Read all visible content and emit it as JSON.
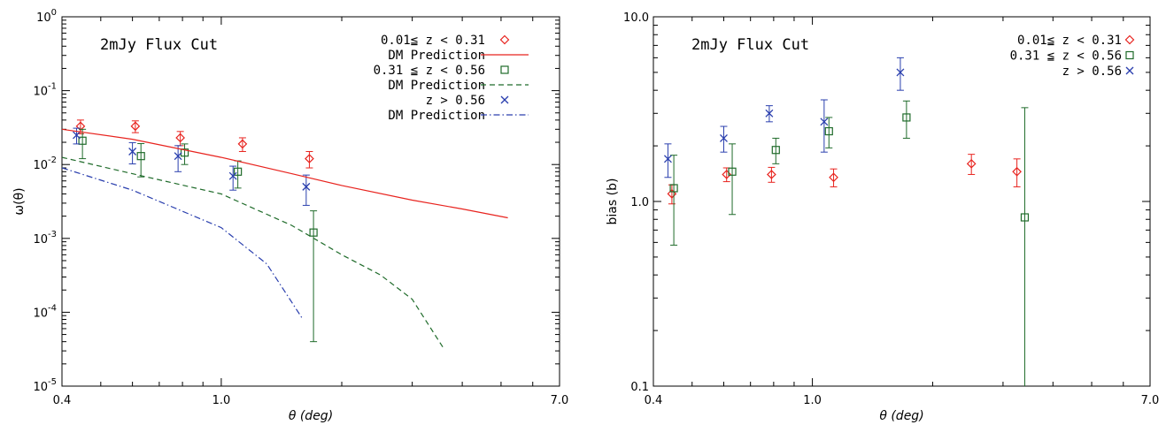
{
  "colors": {
    "red": "#e8231e",
    "green": "#1f6b2a",
    "blue": "#2a3fae"
  },
  "chart_data": [
    {
      "type": "scatter",
      "xscale": "log",
      "yscale": "log",
      "xlim": [
        0.4,
        7.0
      ],
      "ylim": [
        1e-05,
        1.0
      ],
      "title": "2mJy Flux Cut",
      "xlabel": "θ (deg)",
      "ylabel": "ω(θ)",
      "xticks": [
        "0.4",
        "1.0",
        "7.0"
      ],
      "yticks": [
        {
          "base": "10",
          "exp": "0"
        },
        {
          "base": "10",
          "exp": "-1"
        },
        {
          "base": "10",
          "exp": "-2"
        },
        {
          "base": "10",
          "exp": "-3"
        },
        {
          "base": "10",
          "exp": "-4"
        },
        {
          "base": "10",
          "exp": "-5"
        }
      ],
      "legend_position": "top-right",
      "legend": [
        {
          "label": "0.01≦ z < 0.31",
          "key": "s1"
        },
        {
          "label": "DM Prediction",
          "key": "m1"
        },
        {
          "label": "0.31 ≦ z < 0.56",
          "key": "s2"
        },
        {
          "label": "DM Prediction",
          "key": "m2"
        },
        {
          "label": "z > 0.56",
          "key": "s3"
        },
        {
          "label": "DM Prediction",
          "key": "m3"
        }
      ],
      "series": [
        {
          "key": "s1",
          "marker": "diamond",
          "color": "red",
          "x": [
            0.445,
            0.61,
            0.79,
            1.13,
            1.66
          ],
          "y": [
            0.033,
            0.033,
            0.023,
            0.019,
            0.012
          ],
          "err": [
            0.007,
            0.006,
            0.005,
            0.004,
            0.003
          ]
        },
        {
          "key": "s2",
          "marker": "square",
          "color": "green",
          "x": [
            0.45,
            0.63,
            0.81,
            1.1,
            1.7
          ],
          "y": [
            0.021,
            0.013,
            0.0145,
            0.008,
            0.0012
          ],
          "err": [
            0.009,
            0.0062,
            0.0045,
            0.0032,
            0.00116
          ]
        },
        {
          "key": "s3",
          "marker": "x",
          "color": "blue",
          "x": [
            0.435,
            0.6,
            0.78,
            1.07,
            1.63
          ],
          "y": [
            0.025,
            0.015,
            0.013,
            0.007,
            0.005
          ],
          "err": [
            0.006,
            0.0048,
            0.005,
            0.0025,
            0.0022
          ]
        },
        {
          "key": "m1",
          "line": "solid",
          "color": "red",
          "x": [
            0.4,
            0.6,
            1.0,
            1.5,
            2.0,
            3.0,
            4.0,
            5.2
          ],
          "y": [
            0.03,
            0.022,
            0.0125,
            0.0075,
            0.0052,
            0.0033,
            0.0025,
            0.0019
          ]
        },
        {
          "key": "m2",
          "line": "dashed",
          "color": "green",
          "x": [
            0.4,
            0.6,
            1.0,
            1.5,
            2.0,
            2.5,
            3.0,
            3.6
          ],
          "y": [
            0.0125,
            0.0075,
            0.004,
            0.0015,
            0.0006,
            0.00032,
            0.00015,
            3.2e-05
          ]
        },
        {
          "key": "m3",
          "line": "dashdot",
          "color": "blue",
          "x": [
            0.4,
            0.6,
            1.0,
            1.3,
            1.6
          ],
          "y": [
            0.009,
            0.0045,
            0.0014,
            0.00045,
            8e-05
          ]
        }
      ]
    },
    {
      "type": "scatter",
      "xscale": "log",
      "yscale": "log",
      "xlim": [
        0.4,
        7.0
      ],
      "ylim": [
        0.1,
        10.0
      ],
      "title": "2mJy Flux Cut",
      "xlabel": "θ (deg)",
      "ylabel": "bias (b)",
      "xticks": [
        "0.4",
        "1.0",
        "7.0"
      ],
      "yticks": [
        "10.0",
        "1.0",
        "0.1"
      ],
      "legend_position": "top-right",
      "legend": [
        {
          "label": "0.01≦ z < 0.31",
          "key": "s1"
        },
        {
          "label": "0.31 ≦ z < 0.56",
          "key": "s2"
        },
        {
          "label": "z > 0.56",
          "key": "s3"
        }
      ],
      "series": [
        {
          "key": "s1",
          "marker": "diamond",
          "color": "red",
          "x": [
            0.445,
            0.61,
            0.79,
            1.13,
            2.5,
            3.25
          ],
          "y": [
            1.1,
            1.4,
            1.4,
            1.35,
            1.6,
            1.45
          ],
          "err": [
            0.13,
            0.12,
            0.13,
            0.15,
            0.2,
            0.25
          ]
        },
        {
          "key": "s2",
          "marker": "square",
          "color": "green",
          "x": [
            0.45,
            0.63,
            0.81,
            1.1,
            1.72,
            3.4
          ],
          "y": [
            1.18,
            1.45,
            1.9,
            2.4,
            2.85,
            0.82
          ],
          "err": [
            0.6,
            0.6,
            0.3,
            0.45,
            0.65,
            2.4
          ]
        },
        {
          "key": "s3",
          "marker": "x",
          "color": "blue",
          "x": [
            0.435,
            0.6,
            0.78,
            1.07,
            1.66
          ],
          "y": [
            1.7,
            2.2,
            3.0,
            2.7,
            5.0
          ],
          "err": [
            0.35,
            0.35,
            0.3,
            0.85,
            1.0
          ]
        }
      ]
    }
  ]
}
